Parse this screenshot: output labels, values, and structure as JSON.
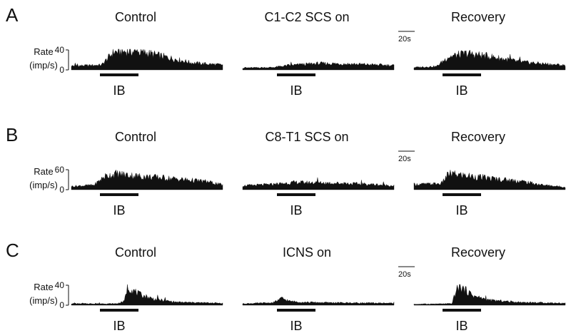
{
  "figure": {
    "type": "peri-stimulus rate histograms"
  },
  "chart_data": [
    {
      "type": "area",
      "panel": "A",
      "condition": "Control",
      "ylabel": [
        "Rate",
        "(imp/s)"
      ],
      "yticks": [
        0,
        40
      ],
      "ylim": [
        0,
        40
      ],
      "stimulus_label": "IB",
      "x": [
        0,
        24,
        40,
        56,
        76,
        100,
        130,
        160,
        200
      ],
      "y": [
        8,
        9,
        10,
        36,
        37,
        34,
        24,
        14,
        10
      ]
    },
    {
      "type": "area",
      "panel": "A",
      "condition": "C1-C2 SCS on",
      "ylim": [
        0,
        40
      ],
      "stimulus_label": "IB",
      "x": [
        0,
        40,
        60,
        100,
        140,
        200
      ],
      "y": [
        4,
        5,
        9,
        13,
        12,
        9
      ]
    },
    {
      "type": "area",
      "panel": "A",
      "condition": "Recovery",
      "ylim": [
        0,
        40
      ],
      "stimulus_label": "IB",
      "scale_bar_label": "20s",
      "x": [
        0,
        30,
        45,
        70,
        100,
        140,
        200
      ],
      "y": [
        5,
        7,
        26,
        33,
        27,
        16,
        9
      ]
    },
    {
      "type": "area",
      "panel": "B",
      "condition": "Control",
      "ylabel": [
        "Rate",
        "(imp/s)"
      ],
      "yticks": [
        0,
        60
      ],
      "ylim": [
        0,
        60
      ],
      "stimulus_label": "IB",
      "x": [
        0,
        30,
        44,
        60,
        90,
        120,
        150,
        180,
        200
      ],
      "y": [
        10,
        14,
        40,
        48,
        40,
        36,
        30,
        24,
        14
      ]
    },
    {
      "type": "area",
      "panel": "B",
      "condition": "C8-T1 SCS on",
      "ylim": [
        0,
        60
      ],
      "stimulus_label": "IB",
      "x": [
        0,
        40,
        70,
        120,
        170,
        200
      ],
      "y": [
        12,
        16,
        22,
        20,
        16,
        12
      ]
    },
    {
      "type": "area",
      "panel": "B",
      "condition": "Recovery",
      "ylim": [
        0,
        60
      ],
      "stimulus_label": "IB",
      "scale_bar_label": "20s",
      "x": [
        0,
        36,
        46,
        70,
        100,
        140,
        170,
        200
      ],
      "y": [
        16,
        18,
        48,
        42,
        34,
        26,
        14,
        8
      ]
    },
    {
      "type": "area",
      "panel": "C",
      "condition": "Control",
      "ylabel": [
        "Rate",
        "(imp/s)"
      ],
      "yticks": [
        0,
        40
      ],
      "ylim": [
        0,
        40
      ],
      "stimulus_label": "IB",
      "x": [
        0,
        60,
        70,
        74,
        90,
        110,
        140,
        200
      ],
      "y": [
        3,
        3,
        8,
        36,
        22,
        12,
        6,
        4
      ]
    },
    {
      "type": "area",
      "panel": "C",
      "condition": "ICNS on",
      "ylim": [
        0,
        40
      ],
      "stimulus_label": "IB",
      "x": [
        0,
        40,
        52,
        62,
        80,
        120,
        200
      ],
      "y": [
        3,
        5,
        14,
        8,
        6,
        5,
        4
      ]
    },
    {
      "type": "area",
      "panel": "C",
      "condition": "Recovery",
      "ylim": [
        0,
        40
      ],
      "stimulus_label": "IB",
      "scale_bar_label": "20s",
      "x": [
        0,
        50,
        56,
        60,
        80,
        100,
        140,
        200
      ],
      "y": [
        2,
        3,
        30,
        38,
        18,
        10,
        6,
        4
      ]
    }
  ]
}
